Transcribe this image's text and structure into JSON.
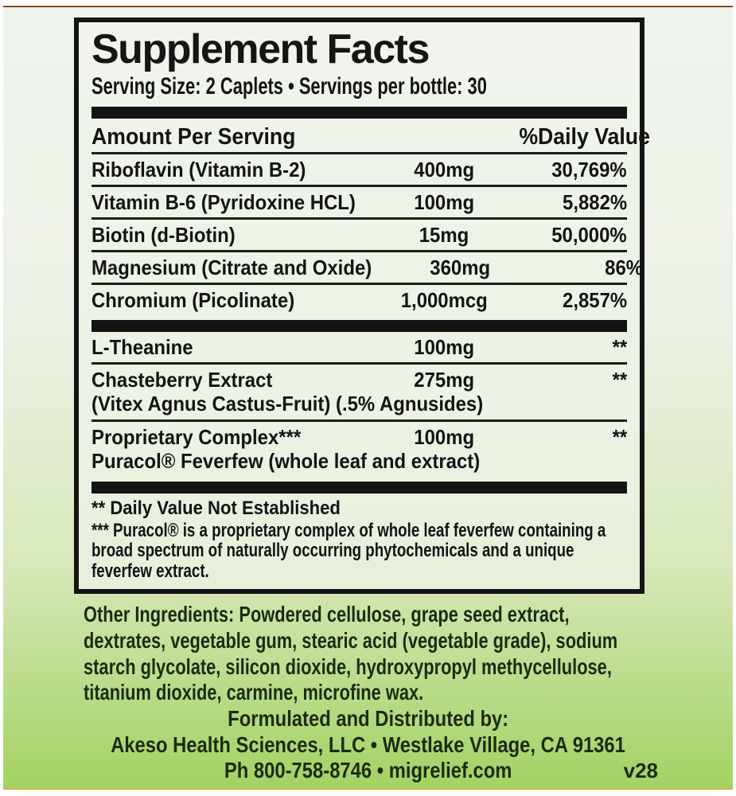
{
  "colors": {
    "orange": "#f6941f",
    "green-bottom": "#a3d263",
    "bg-light": "#eff4ed",
    "rule-black": "#181818"
  },
  "panel": {
    "title": "Supplement Facts",
    "serving_line": "Serving Size: 2 Caplets • Servings per bottle: 30",
    "header": {
      "amount_per_serving": "Amount Per Serving",
      "daily_value": "%Daily Value"
    },
    "rows": [
      {
        "name": "Riboflavin (Vitamin B-2)",
        "amount": "400mg",
        "dv": "30,769%"
      },
      {
        "name": "Vitamin B-6 (Pyridoxine HCL)",
        "amount": "100mg",
        "dv": "5,882%"
      },
      {
        "name": "Biotin (d-Biotin)",
        "amount": "15mg",
        "dv": "50,000%"
      },
      {
        "name": "Magnesium (Citrate and Oxide)",
        "amount": "360mg",
        "dv": "86%"
      },
      {
        "name": "Chromium (Picolinate)",
        "amount": "1,000mcg",
        "dv": "2,857%"
      }
    ],
    "rows_no_dv": [
      {
        "name": "L-Theanine",
        "sub": "",
        "amount": "100mg",
        "dv": "**"
      },
      {
        "name": "Chasteberry Extract",
        "sub": "(Vitex Agnus Castus-Fruit) (.5% Agnusides)",
        "amount": "275mg",
        "dv": "**"
      },
      {
        "name": "Proprietary Complex***",
        "sub": "Puracol® Feverfew (whole leaf and extract)",
        "amount": "100mg",
        "dv": "**"
      }
    ],
    "footnotes": {
      "line1": "** Daily Value Not Established",
      "line2": "*** Puracol® is a proprietary complex of whole leaf feverfew containing a broad spectrum of naturally occurring phytochemicals and a unique feverfew extract."
    }
  },
  "other_ingredients": {
    "label": "Other Ingredients:",
    "text": "Powdered cellulose, grape seed extract, dextrates, vegetable gum, stearic acid (vegetable grade), sodium starch glycolate, silicon dioxide, hydroxypropyl methycellulose, titanium dioxide, carmine, microfine wax."
  },
  "distributor": {
    "line1": "Formulated and Distributed by:",
    "line2": "Akeso Health Sciences, LLC • Westlake Village, CA 91361",
    "line3": "Ph 800-758-8746 • migrelief.com",
    "version": "v28"
  }
}
